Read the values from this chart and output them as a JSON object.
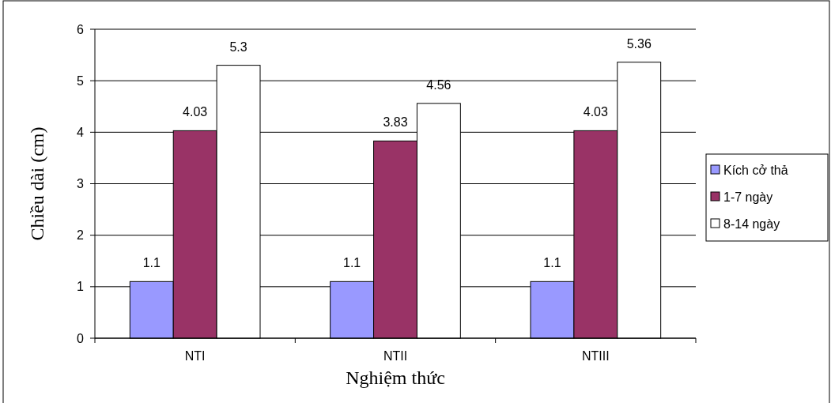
{
  "chart_data": {
    "type": "bar",
    "xlabel": "Nghiệm thức",
    "ylabel": "Chiều dài (cm)",
    "categories": [
      "NTI",
      "NTII",
      "NTIII"
    ],
    "series": [
      {
        "name": "Kích cở thả",
        "color": "#9999ff",
        "values": [
          1.1,
          1.1,
          1.1
        ]
      },
      {
        "name": "1-7 ngày",
        "color": "#993366",
        "values": [
          4.03,
          3.83,
          4.03
        ]
      },
      {
        "name": "8-14 ngày",
        "color": "#ffffff",
        "values": [
          5.3,
          4.56,
          5.36
        ]
      }
    ],
    "ylim": [
      0,
      6
    ],
    "yticks": [
      0,
      1,
      2,
      3,
      4,
      5,
      6
    ],
    "grid": "y",
    "legend": "right",
    "data_labels": true
  }
}
